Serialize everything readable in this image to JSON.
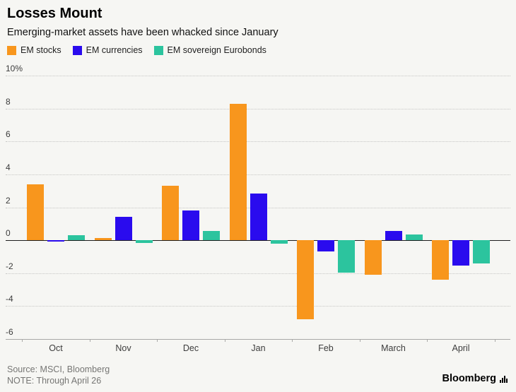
{
  "header": {
    "title": "Losses Mount",
    "subtitle": "Emerging-market assets have been whacked since January"
  },
  "legend": [
    {
      "label": "EM stocks",
      "color": "#f8961d"
    },
    {
      "label": "EM currencies",
      "color": "#2a0bee"
    },
    {
      "label": "EM sovereign Eurobonds",
      "color": "#2cc49e"
    }
  ],
  "chart_data": {
    "type": "bar",
    "categories": [
      "Oct",
      "Nov",
      "Dec",
      "Jan",
      "Feb",
      "March",
      "April"
    ],
    "series": [
      {
        "name": "EM stocks",
        "color": "#f8961d",
        "values": [
          3.4,
          0.15,
          3.3,
          8.3,
          -4.8,
          -2.1,
          -2.4
        ]
      },
      {
        "name": "EM currencies",
        "color": "#2a0bee",
        "values": [
          -0.1,
          1.4,
          1.8,
          2.85,
          -0.7,
          0.55,
          -1.55
        ]
      },
      {
        "name": "EM sovereign Eurobonds",
        "color": "#2cc49e",
        "values": [
          0.3,
          -0.15,
          0.55,
          -0.2,
          -1.95,
          0.35,
          -1.4
        ]
      }
    ],
    "title": "Losses Mount",
    "xlabel": "",
    "ylabel": "",
    "ylim": [
      -6,
      10
    ],
    "yticks": [
      10,
      8,
      6,
      4,
      2,
      0,
      -2,
      -4,
      -6
    ],
    "ytick_labels": [
      "10%",
      "8",
      "6",
      "4",
      "2",
      "0",
      "-2",
      "-4",
      "-6"
    ],
    "grid": true,
    "legend_position": "top"
  },
  "footer": {
    "source": "Source: MSCI, Bloomberg",
    "note": "NOTE: Through April 26",
    "brand": "Bloomberg"
  }
}
